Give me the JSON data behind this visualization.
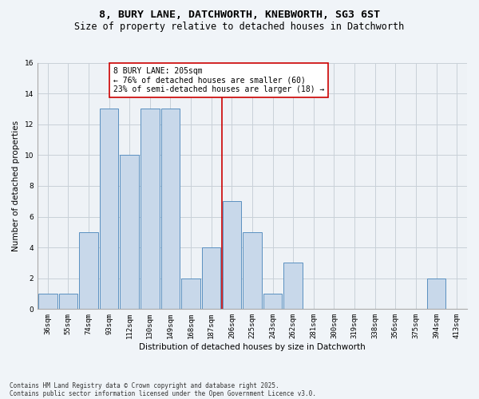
{
  "title1": "8, BURY LANE, DATCHWORTH, KNEBWORTH, SG3 6ST",
  "title2": "Size of property relative to detached houses in Datchworth",
  "xlabel": "Distribution of detached houses by size in Datchworth",
  "ylabel": "Number of detached properties",
  "categories": [
    "36sqm",
    "55sqm",
    "74sqm",
    "93sqm",
    "112sqm",
    "130sqm",
    "149sqm",
    "168sqm",
    "187sqm",
    "206sqm",
    "225sqm",
    "243sqm",
    "262sqm",
    "281sqm",
    "300sqm",
    "319sqm",
    "338sqm",
    "356sqm",
    "375sqm",
    "394sqm",
    "413sqm"
  ],
  "values": [
    1,
    1,
    5,
    13,
    10,
    13,
    13,
    2,
    4,
    7,
    5,
    1,
    3,
    0,
    0,
    0,
    0,
    0,
    0,
    2,
    0
  ],
  "bar_color": "#c8d8ea",
  "bar_edge_color": "#5a90c0",
  "vline_color": "#cc0000",
  "vline_pos": 8.5,
  "annotation_text": "8 BURY LANE: 205sqm\n← 76% of detached houses are smaller (60)\n23% of semi-detached houses are larger (18) →",
  "annotation_box_color": "#cc0000",
  "ylim": [
    0,
    16
  ],
  "yticks": [
    0,
    2,
    4,
    6,
    8,
    10,
    12,
    14,
    16
  ],
  "grid_color": "#c8d0d8",
  "bg_color": "#eef2f6",
  "fig_bg_color": "#f0f4f8",
  "footer1": "Contains HM Land Registry data © Crown copyright and database right 2025.",
  "footer2": "Contains public sector information licensed under the Open Government Licence v3.0.",
  "title_fontsize": 9.5,
  "subtitle_fontsize": 8.5,
  "axis_label_fontsize": 7.5,
  "tick_fontsize": 6.5,
  "annotation_fontsize": 7,
  "footer_fontsize": 5.5
}
